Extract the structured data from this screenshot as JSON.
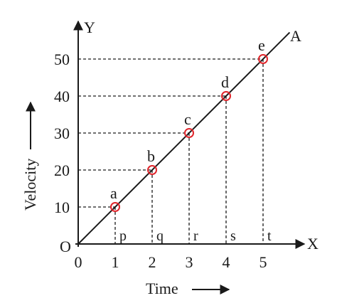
{
  "chart_data": {
    "type": "line",
    "title": "",
    "xlabel": "Time",
    "ylabel": "Velocity",
    "x_axis_letter": "X",
    "y_axis_letter": "Y",
    "origin_label": "O",
    "line_label": "A",
    "xlim": [
      0,
      5.7
    ],
    "ylim": [
      0,
      57
    ],
    "x_ticks": [
      "0",
      "1",
      "2",
      "3",
      "4",
      "5"
    ],
    "y_ticks": [
      "10",
      "20",
      "30",
      "40",
      "50"
    ],
    "grid": false,
    "points": [
      {
        "x": 1,
        "y": 10,
        "label": "a",
        "foot": "p"
      },
      {
        "x": 2,
        "y": 20,
        "label": "b",
        "foot": "q"
      },
      {
        "x": 3,
        "y": 30,
        "label": "c",
        "foot": "r"
      },
      {
        "x": 4,
        "y": 40,
        "label": "d",
        "foot": "s"
      },
      {
        "x": 5,
        "y": 50,
        "label": "e",
        "foot": "t"
      }
    ],
    "colors": {
      "line": "#1a1a1a",
      "marker": "#e0262c"
    }
  }
}
